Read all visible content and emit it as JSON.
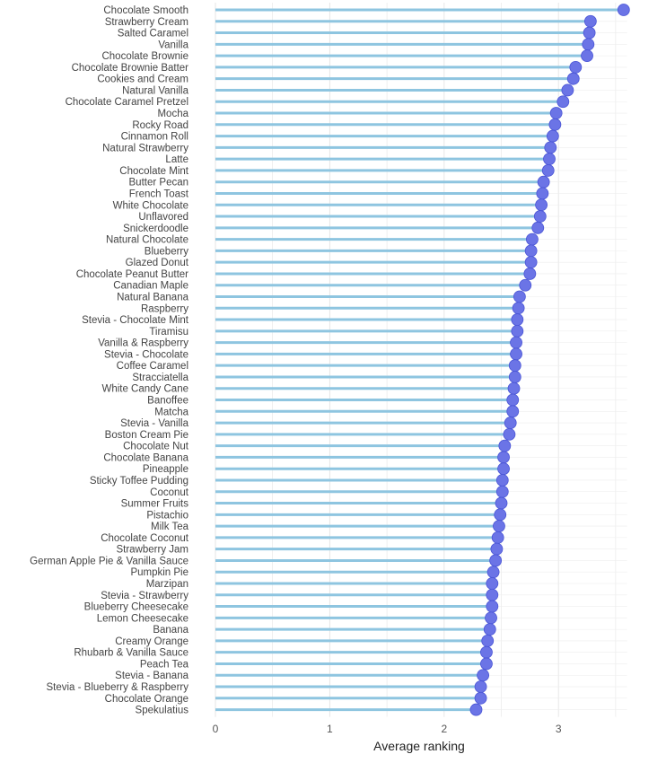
{
  "chart_data": {
    "type": "lollipop",
    "xlabel": "Average ranking",
    "xlim": [
      0,
      3.6
    ],
    "xticks": [
      0,
      1,
      2,
      3
    ],
    "grid": true,
    "colors": {
      "stem": "#8ec5e0",
      "dot": "#6b74e6",
      "dot_edge": "#4a55d6",
      "grid": "#e6e6e6"
    },
    "categories": [
      "Chocolate Smooth",
      "Strawberry Cream",
      "Salted Caramel",
      "Vanilla",
      "Chocolate Brownie",
      "Chocolate Brownie Batter",
      "Cookies and Cream",
      "Natural Vanilla",
      "Chocolate Caramel Pretzel",
      "Mocha",
      "Rocky Road",
      "Cinnamon Roll",
      "Natural Strawberry",
      "Latte",
      "Chocolate Mint",
      "Butter Pecan",
      "French Toast",
      "White Chocolate",
      "Unflavored",
      "Snickerdoodle",
      "Natural Chocolate",
      "Blueberry",
      "Glazed Donut",
      "Chocolate Peanut Butter",
      "Canadian Maple",
      "Natural Banana",
      "Raspberry",
      "Stevia - Chocolate Mint",
      "Tiramisu",
      "Vanilla & Raspberry",
      "Stevia - Chocolate",
      "Coffee Caramel",
      "Stracciatella",
      "White Candy Cane",
      "Banoffee",
      "Matcha",
      "Stevia - Vanilla",
      "Boston Cream Pie",
      "Chocolate Nut",
      "Chocolate Banana",
      "Pineapple",
      "Sticky Toffee Pudding",
      "Coconut",
      "Summer Fruits",
      "Pistachio",
      "Milk Tea",
      "Chocolate Coconut",
      "Strawberry Jam",
      "German Apple Pie & Vanilla Sauce",
      "Pumpkin Pie",
      "Marzipan",
      "Stevia - Strawberry",
      "Blueberry Cheesecake",
      "Lemon Cheesecake",
      "Banana",
      "Creamy Orange",
      "Rhubarb & Vanilla Sauce",
      "Peach Tea",
      "Stevia - Banana",
      "Stevia - Blueberry & Raspberry",
      "Chocolate Orange",
      "Spekulatius"
    ],
    "values": [
      3.57,
      3.28,
      3.27,
      3.26,
      3.25,
      3.15,
      3.13,
      3.08,
      3.04,
      2.98,
      2.97,
      2.95,
      2.93,
      2.92,
      2.91,
      2.87,
      2.86,
      2.85,
      2.84,
      2.82,
      2.77,
      2.76,
      2.76,
      2.75,
      2.71,
      2.66,
      2.65,
      2.64,
      2.64,
      2.63,
      2.63,
      2.62,
      2.62,
      2.61,
      2.6,
      2.6,
      2.58,
      2.57,
      2.53,
      2.52,
      2.52,
      2.51,
      2.51,
      2.5,
      2.49,
      2.48,
      2.47,
      2.46,
      2.45,
      2.43,
      2.42,
      2.42,
      2.42,
      2.41,
      2.4,
      2.38,
      2.37,
      2.37,
      2.34,
      2.32,
      2.32,
      2.28
    ]
  }
}
